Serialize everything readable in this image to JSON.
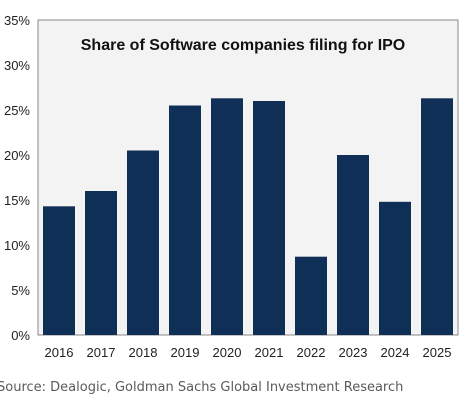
{
  "chart_data": {
    "type": "bar",
    "title": "Share of Software companies filing for IPO",
    "xlabel": "",
    "ylabel": "",
    "categories": [
      "2016",
      "2017",
      "2018",
      "2019",
      "2020",
      "2021",
      "2022",
      "2023",
      "2024",
      "2025"
    ],
    "values": [
      14.3,
      16.0,
      20.5,
      25.5,
      26.3,
      26.0,
      8.7,
      20.0,
      14.8,
      26.3
    ],
    "yticks": [
      "0%",
      "5%",
      "10%",
      "15%",
      "20%",
      "25%",
      "30%",
      "35%"
    ],
    "ylim": [
      0,
      35
    ],
    "grid": false,
    "bar_color": "#0f2f57",
    "plot_background": "#f3f3f3"
  },
  "source": "Source: Dealogic, Goldman Sachs Global Investment Research"
}
